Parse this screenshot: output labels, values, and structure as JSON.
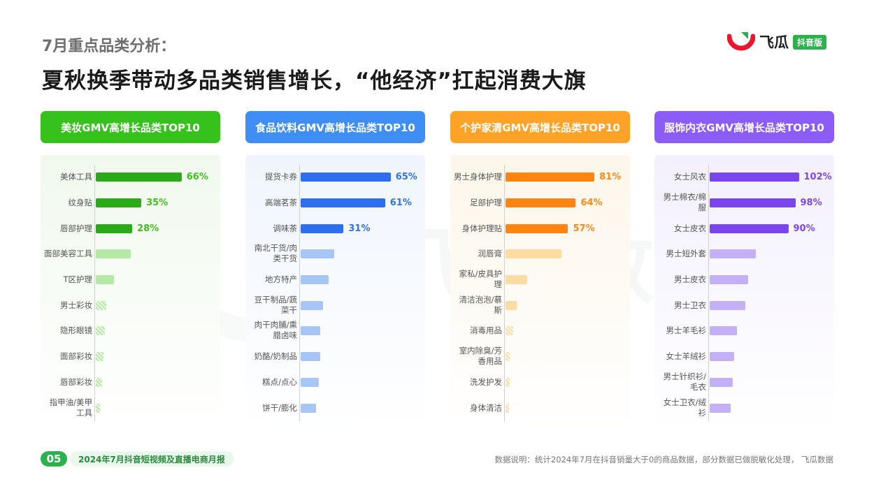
{
  "header": {
    "subtitle": "7月重点品类分析：",
    "title": "夏秋换季带动多品类销售增长，“他经济”扛起消费大旗"
  },
  "brand": {
    "name": "飞瓜",
    "tag": "抖音版"
  },
  "watermark": "飞瓜数据",
  "panels": [
    {
      "title": "美妆GMV高增长品类TOP10",
      "header_color": "#36c11d",
      "bg_color": "#f1f9ee",
      "bar_color": "#2aaa18",
      "light_bar_color": "#b6e8a6",
      "value_color": "#3fc01e"
    },
    {
      "title": "食品饮料GMV高增长品类TOP10",
      "header_color": "#3f8ef5",
      "bg_color": "#f0f5fd",
      "bar_color": "#2d6ff0",
      "light_bar_color": "#a7c6f5",
      "value_color": "#2f74e8"
    },
    {
      "title": "个护家清GMV高增长品类TOP10",
      "header_color": "#ffa228",
      "bg_color": "#fdf6ea",
      "bar_color": "#ff8410",
      "light_bar_color": "#fcdca2",
      "value_color": "#ff8a16"
    },
    {
      "title": "服饰内衣GMV高增长品类TOP10",
      "header_color": "#8b5cf6",
      "bg_color": "#f3f0fd",
      "bar_color": "#7a45ee",
      "light_bar_color": "#c4b0f7",
      "value_color": "#7c48ee"
    }
  ],
  "chart_data": [
    {
      "type": "bar",
      "title": "美妆GMV高增长品类TOP10",
      "orientation": "horizontal",
      "categories": [
        "美体工具",
        "纹身贴",
        "唇部护理",
        "面部美容工具",
        "T区护理",
        "男士彩妆",
        "隐形眼镜",
        "面部彩妆",
        "唇部彩妆",
        "指甲油/美甲工具"
      ],
      "values": [
        66,
        35,
        28,
        27,
        14,
        8,
        7,
        6,
        5,
        3
      ],
      "labels": [
        "66%",
        "35%",
        "28%",
        "",
        "",
        "",
        "",
        "",
        "",
        ""
      ],
      "unit": "%"
    },
    {
      "type": "bar",
      "title": "食品饮料GMV高增长品类TOP10",
      "orientation": "horizontal",
      "categories": [
        "提货卡券",
        "高端茗茶",
        "调味茶",
        "南北干货/肉类干货",
        "地方特产",
        "豆干制品/蔬菜干",
        "肉干肉脯/熏腊卤味",
        "奶酪/奶制品",
        "糕点/点心",
        "饼干/膨化"
      ],
      "values": [
        65,
        61,
        31,
        24,
        20,
        16,
        14,
        14,
        13,
        11
      ],
      "labels": [
        "65%",
        "61%",
        "31%",
        "",
        "",
        "",
        "",
        "",
        "",
        ""
      ],
      "unit": "%"
    },
    {
      "type": "bar",
      "title": "个护家清GMV高增长品类TOP10",
      "orientation": "horizontal",
      "categories": [
        "男士身体护理",
        "足部护理",
        "身体护理贴",
        "润唇膏",
        "家私/皮具护理",
        "清洁泡泡/慕斯",
        "消毒用品",
        "室内除臭/芳香用品",
        "洗发护发",
        "身体清洁"
      ],
      "values": [
        81,
        64,
        57,
        51,
        20,
        10,
        7,
        4,
        4,
        3
      ],
      "labels": [
        "81%",
        "64%",
        "57%",
        "",
        "",
        "",
        "",
        "",
        "",
        ""
      ],
      "unit": "%"
    },
    {
      "type": "bar",
      "title": "服饰内衣GMV高增长品类TOP10",
      "orientation": "horizontal",
      "categories": [
        "女士风衣",
        "男士棉衣/棉服",
        "女士皮衣",
        "男士短外套",
        "男士皮衣",
        "男士卫衣",
        "男士羊毛衫",
        "女士羊绒衫",
        "男士针织衫/毛衣",
        "女士卫衣/绒衫"
      ],
      "values": [
        102,
        98,
        90,
        53,
        44,
        41,
        31,
        28,
        26,
        24
      ],
      "labels": [
        "102%",
        "98%",
        "90%",
        "",
        "",
        "",
        "",
        "",
        "",
        ""
      ],
      "unit": "%"
    }
  ],
  "footer": {
    "page_number": "05",
    "report_title": "2024年7月抖音短视频及直播电商月报",
    "note": "数据说明：统计2024年7月在抖音销量大于0的商品数据，部分数据已做脱敏化处理，  飞瓜数据"
  }
}
